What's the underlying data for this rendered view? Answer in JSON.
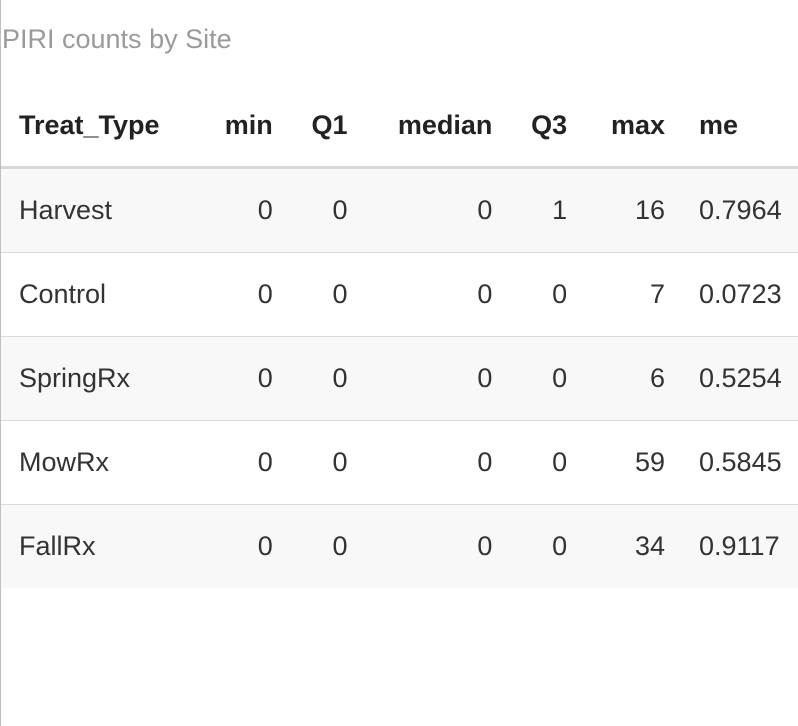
{
  "caption": "PIRI counts by Site",
  "table": {
    "headers": [
      "Treat_Type",
      "min",
      "Q1",
      "median",
      "Q3",
      "max",
      "me"
    ],
    "rows": [
      [
        "Harvest",
        "0",
        "0",
        "0",
        "1",
        "16",
        "0.7964"
      ],
      [
        "Control",
        "0",
        "0",
        "0",
        "0",
        "7",
        "0.0723"
      ],
      [
        "SpringRx",
        "0",
        "0",
        "0",
        "0",
        "6",
        "0.5254"
      ],
      [
        "MowRx",
        "0",
        "0",
        "0",
        "0",
        "59",
        "0.5845"
      ],
      [
        "FallRx",
        "0",
        "0",
        "0",
        "0",
        "34",
        "0.9117"
      ]
    ]
  },
  "colors": {
    "caption": "#9a9a9a",
    "stripe": "#f8f8f8",
    "rule": "#d8d8d8"
  }
}
